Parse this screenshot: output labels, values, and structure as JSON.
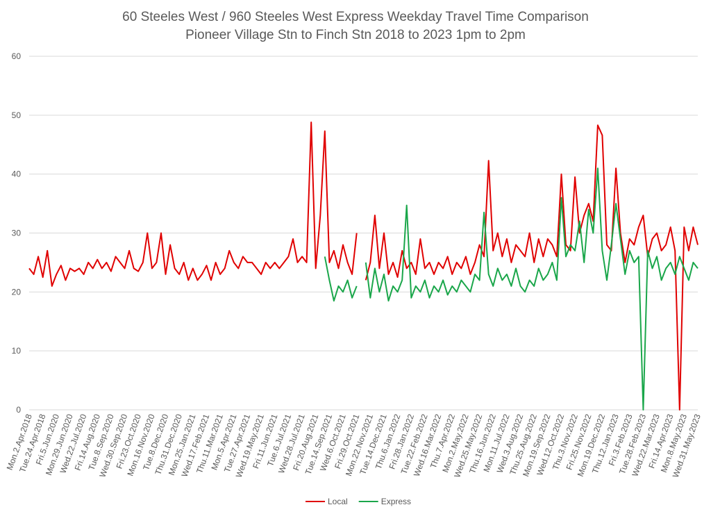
{
  "chart_data": {
    "type": "line",
    "title": "60 Steeles West / 960 Steeles West Express Weekday Travel Time Comparison",
    "subtitle": "Pioneer Village Stn to Finch Stn 2018 to 2023 1pm to 2pm",
    "categories": [
      "Mon.2.Apr.2018",
      null,
      null,
      "Tue.24.Apr.2018",
      null,
      null,
      "Fri.5.Jun.2020",
      null,
      null,
      "Mon.29.Jun.2020",
      null,
      null,
      "Wed.22.Jul.2020",
      null,
      null,
      "Fri.14.Aug.2020",
      null,
      null,
      "Tue.8.Sep.2020",
      null,
      null,
      "Wed.30.Sep.2020",
      null,
      null,
      "Fri.23.Oct.2020",
      null,
      null,
      "Mon.16.Nov.2020",
      null,
      null,
      "Tue.8.Dec.2020",
      null,
      null,
      "Thu.31.Dec.2020",
      null,
      null,
      "Mon.25.Jan.2021",
      null,
      null,
      "Wed.17.Feb.2021",
      null,
      null,
      "Thu.11.Mar.2021",
      null,
      null,
      "Mon.5.Apr.2021",
      null,
      null,
      "Tue.27.Apr.2021",
      null,
      null,
      "Wed.19.May.2021",
      null,
      null,
      "Fri.11.Jun.2021",
      null,
      null,
      "Tue.6.Jul.2021",
      null,
      null,
      "Wed.28.Jul.2021",
      null,
      null,
      "Fri.20.Aug.2021",
      null,
      null,
      "Tue.14.Sep.2021",
      null,
      null,
      "Wed.6.Oct.2021",
      null,
      null,
      "Fri.29.Oct.2021",
      null,
      null,
      "Mon.22.Nov.2021",
      null,
      null,
      "Tue.14.Dec.2021",
      null,
      null,
      "Thu.6.Jan.2022",
      null,
      null,
      "Fri.28.Jan.2022",
      null,
      null,
      "Tue.22.Feb.2022",
      null,
      null,
      "Wed.16.Mar.2022",
      null,
      null,
      "Thu.7.Apr.2022",
      null,
      null,
      "Mon.2.May.2022",
      null,
      null,
      "Wed.25.May.2022",
      null,
      null,
      "Thu.16.Jun.2022",
      null,
      null,
      "Mon.11.Jul.2022",
      null,
      null,
      "Wed.3.Aug.2022",
      null,
      null,
      "Thu.25.Aug.2022",
      null,
      null,
      "Mon.19.Sep.2022",
      null,
      null,
      "Wed.12.Oct.2022",
      null,
      null,
      "Thu.3.Nov.2022",
      null,
      null,
      "Fri.25.Nov.2022",
      null,
      null,
      "Mon.19.Dec.2022",
      null,
      null,
      "Thu.12.Jan.2023",
      null,
      null,
      "Fri.3.Feb.2023",
      null,
      null,
      "Tue.28.Feb.2023",
      null,
      null,
      "Wed.22.Mar.2023",
      null,
      null,
      "Fri.14.Apr.2023",
      null,
      null,
      "Mon.8.May.2023",
      null,
      null,
      "Wed.31.May.2023"
    ],
    "series": [
      {
        "name": "Local",
        "color": "#e00000",
        "values": [
          24,
          23,
          26,
          22.5,
          27,
          21,
          23,
          24.5,
          22,
          24,
          23.5,
          24,
          23,
          25,
          24,
          25.5,
          24,
          25,
          23.5,
          26,
          25,
          24,
          27,
          24,
          23.5,
          25,
          30,
          24,
          25,
          30,
          23,
          28,
          24,
          23,
          25,
          22,
          24,
          22,
          23,
          24.5,
          22,
          25,
          23,
          24,
          27,
          25,
          24,
          26,
          25,
          25,
          24,
          23,
          25,
          24,
          25,
          24,
          25,
          26,
          29,
          25,
          26,
          25,
          48.8,
          24,
          33,
          47.3,
          25,
          27,
          24,
          28,
          25,
          23,
          30,
          null,
          22,
          25,
          33,
          24,
          30,
          23,
          25,
          22.5,
          27,
          24,
          25,
          23,
          29,
          24,
          25,
          23,
          25,
          24,
          26,
          23,
          25,
          24,
          26,
          23,
          25,
          28,
          26,
          42.3,
          27,
          30,
          26,
          29,
          25,
          28,
          27,
          26,
          30,
          25,
          29,
          26,
          29,
          28,
          26,
          40,
          28,
          27,
          39.5,
          30,
          33,
          35,
          32,
          48.3,
          46.6,
          28,
          27,
          41,
          30,
          25,
          29,
          28,
          31,
          33,
          26,
          29,
          30,
          27,
          28,
          31,
          27,
          0,
          31,
          27,
          31,
          28
        ]
      },
      {
        "name": "Express",
        "color": "#1aa64a",
        "values": [
          null,
          null,
          null,
          null,
          null,
          null,
          null,
          null,
          null,
          null,
          null,
          null,
          null,
          null,
          null,
          null,
          null,
          null,
          null,
          null,
          null,
          null,
          null,
          null,
          null,
          null,
          null,
          null,
          null,
          null,
          null,
          null,
          null,
          null,
          null,
          null,
          null,
          null,
          null,
          null,
          null,
          null,
          null,
          null,
          null,
          null,
          null,
          null,
          null,
          null,
          null,
          null,
          null,
          null,
          null,
          null,
          null,
          null,
          null,
          null,
          null,
          null,
          null,
          null,
          null,
          26,
          22,
          18.5,
          21,
          20,
          22,
          19,
          21,
          null,
          25,
          19,
          24,
          20,
          23,
          18.5,
          21,
          20,
          22,
          34.7,
          19,
          21,
          20,
          22,
          19,
          21,
          20,
          22,
          19.5,
          21,
          20,
          22,
          21,
          20,
          23,
          22,
          33.5,
          23,
          21,
          24,
          22,
          23,
          21,
          24,
          21,
          20,
          22,
          21,
          24,
          22,
          23,
          25,
          22,
          36,
          26,
          28,
          27,
          32,
          25,
          34,
          30,
          41,
          27,
          22,
          28,
          35,
          29,
          23,
          27,
          25,
          26,
          0,
          27,
          24,
          26,
          22,
          24,
          25,
          23,
          26,
          24,
          22,
          25,
          24
        ]
      }
    ],
    "ylim": [
      0,
      60
    ],
    "yticks": [
      0,
      10,
      20,
      30,
      40,
      50,
      60
    ],
    "grid": true,
    "legend": "bottom"
  }
}
